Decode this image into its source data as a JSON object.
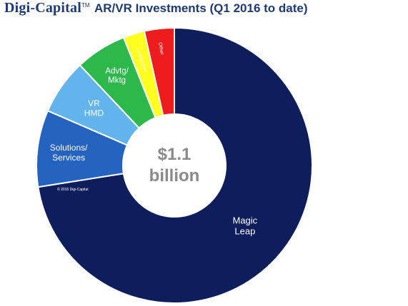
{
  "header": {
    "brand": "Digi-Capital",
    "trademark": "TM",
    "title": "AR/VR Investments (Q1 2016 to date)"
  },
  "chart_data": {
    "type": "pie",
    "variant": "donut",
    "title": "AR/VR Investments (Q1 2016 to date)",
    "center_label": [
      "$1.1",
      "billion"
    ],
    "copyright": "© 2016 Digi-Capital",
    "slices": [
      {
        "label": "Magic Leap",
        "value": 72.5,
        "color": "#0e1d5c"
      },
      {
        "label": "Solutions/ Services",
        "value": 9.0,
        "color": "#2563c0"
      },
      {
        "label": "VR HMD",
        "value": 6.5,
        "color": "#62b5ec"
      },
      {
        "label": "Advtg/ Mktg",
        "value": 6.0,
        "color": "#2db84b"
      },
      {
        "label": "Distribution",
        "value": 2.5,
        "color": "#ffff20"
      },
      {
        "label": "Other",
        "value": 3.5,
        "color": "#ee1c1c"
      }
    ]
  }
}
